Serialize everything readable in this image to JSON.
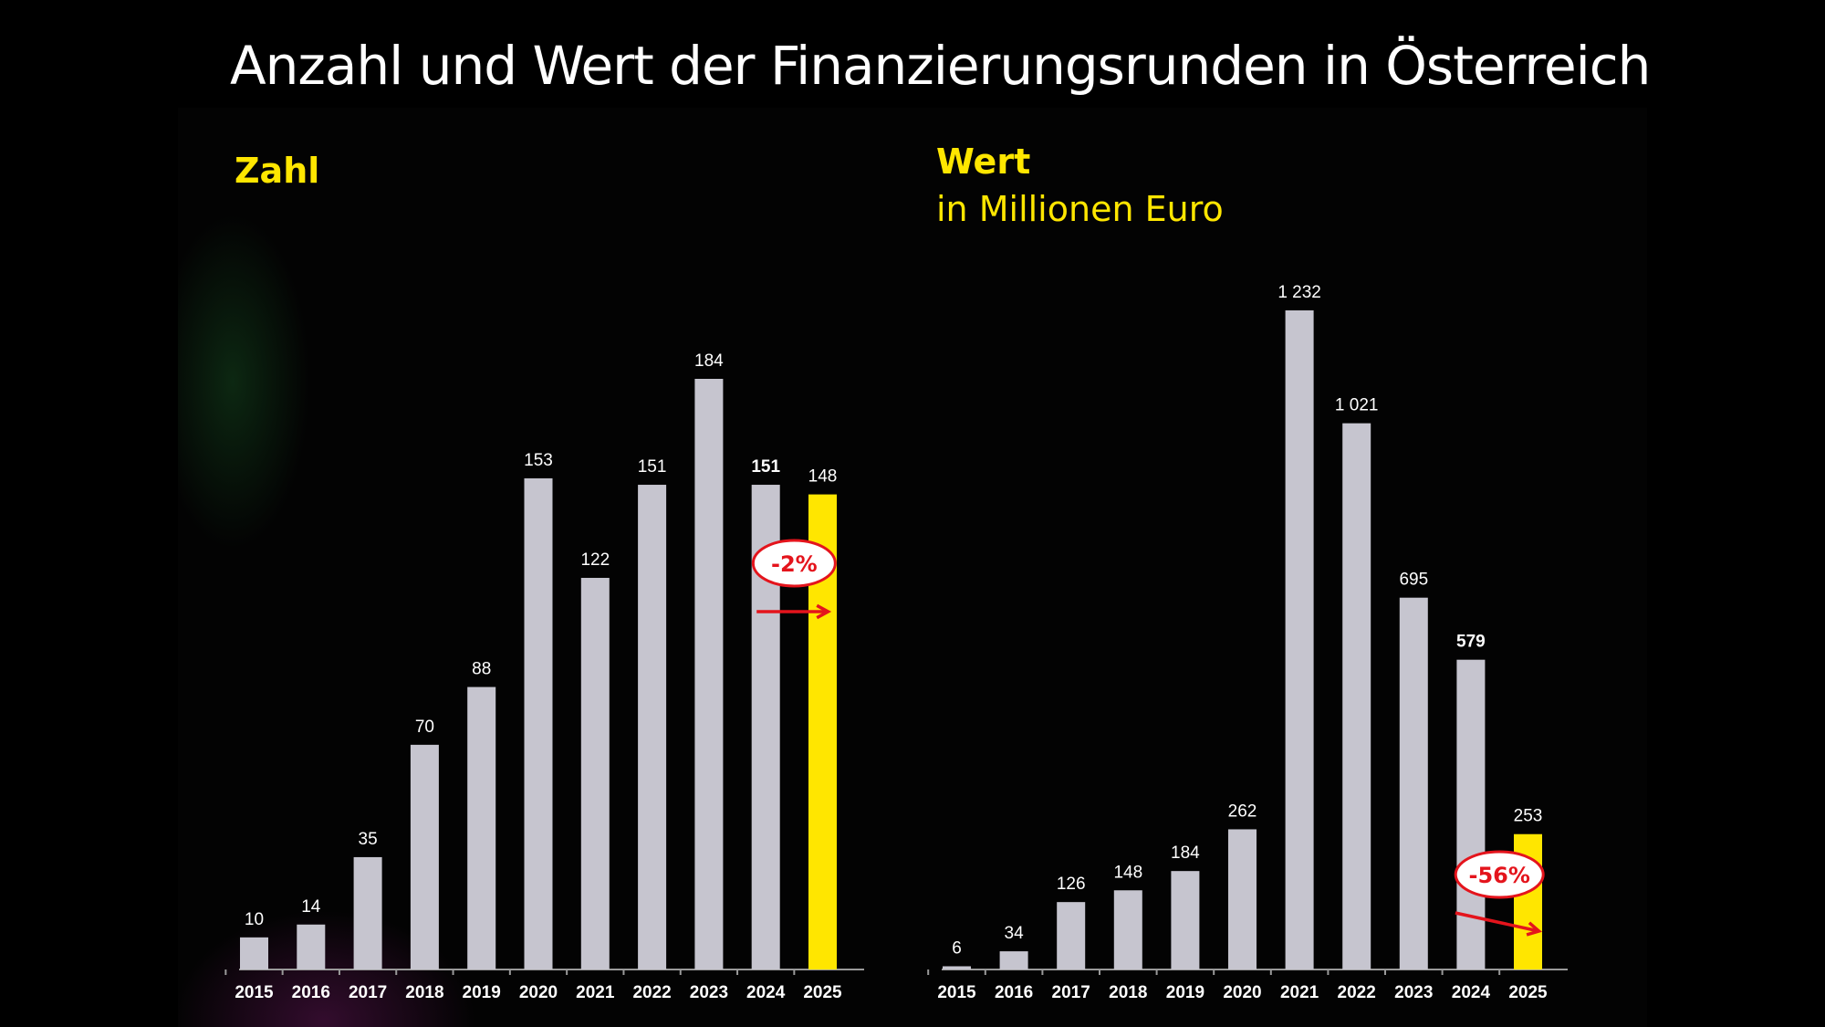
{
  "title": "Anzahl und Wert der Finanzierungsrunden in Österreich",
  "colors": {
    "bar": "#c6c5cf",
    "highlight": "#ffe600",
    "badge": "#e4141c",
    "axis": "#9a9a9a"
  },
  "chart_data": [
    {
      "type": "bar",
      "title": "Zahl",
      "subtitle": "",
      "categories": [
        "2015",
        "2016",
        "2017",
        "2018",
        "2019",
        "2020",
        "2021",
        "2022",
        "2023",
        "2024",
        "2025"
      ],
      "values": [
        10,
        14,
        35,
        70,
        88,
        153,
        122,
        151,
        184,
        151,
        148
      ],
      "value_labels": [
        "10",
        "14",
        "35",
        "70",
        "88",
        "153",
        "122",
        "151",
        "184",
        "151",
        "148"
      ],
      "bold_value_index": 9,
      "highlight_index": 10,
      "ylim": [
        0,
        184
      ],
      "annotation": {
        "text": "-2%",
        "arrow": "horizontal-right",
        "from_index": 9,
        "to_index": 10
      }
    },
    {
      "type": "bar",
      "title": "Wert",
      "subtitle": "in Millionen Euro",
      "categories": [
        "2015",
        "2016",
        "2017",
        "2018",
        "2019",
        "2020",
        "2021",
        "2022",
        "2023",
        "2024",
        "2025"
      ],
      "values": [
        6,
        34,
        126,
        148,
        184,
        262,
        1232,
        1021,
        695,
        579,
        253
      ],
      "value_labels": [
        "6",
        "34",
        "126",
        "148",
        "184",
        "262",
        "1 232",
        "1 021",
        "695",
        "579",
        "253"
      ],
      "bold_value_index": 9,
      "highlight_index": 10,
      "ylim": [
        0,
        1232
      ],
      "annotation": {
        "text": "-56%",
        "arrow": "diagonal-down-right",
        "from_index": 9,
        "to_index": 10
      }
    }
  ]
}
